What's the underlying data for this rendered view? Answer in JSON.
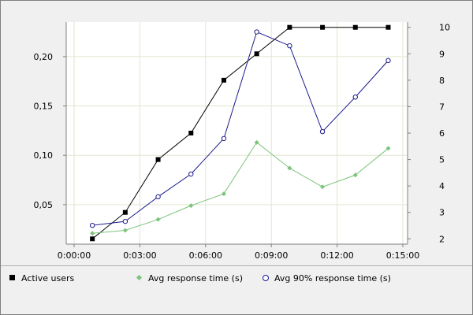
{
  "chart_data": {
    "type": "line",
    "x": [
      "0:00:50",
      "0:02:20",
      "0:03:50",
      "0:05:20",
      "0:06:50",
      "0:08:20",
      "0:09:50",
      "0:11:20",
      "0:12:50",
      "0:14:20"
    ],
    "x_ticks": [
      "0:00:00",
      "0:03:00",
      "0:06:00",
      "0:09:00",
      "0:12:00",
      "0:15:00"
    ],
    "xlim": [
      "0:00:00",
      "0:15:00"
    ],
    "y_left_ticks": [
      "0,05",
      "0,10",
      "0,15",
      "0,20"
    ],
    "ylim_left": [
      0.01,
      0.235
    ],
    "y_right_ticks": [
      "2",
      "3",
      "4",
      "5",
      "6",
      "7",
      "8",
      "9",
      "10"
    ],
    "ylim_right": [
      1.8,
      10.2
    ],
    "grid": true,
    "legend_position": "bottom",
    "series": [
      {
        "name": "Active users",
        "axis": "right",
        "color": "#000000",
        "marker": "square",
        "values": [
          2,
          3,
          5,
          6,
          8,
          9,
          10,
          10,
          10,
          10
        ]
      },
      {
        "name": "Avg response time (s)",
        "axis": "left",
        "color": "#7cc47c",
        "marker": "diamond",
        "values": [
          0.021,
          0.024,
          0.035,
          0.049,
          0.061,
          0.113,
          0.087,
          0.068,
          0.08,
          0.107
        ]
      },
      {
        "name": "Avg 90% response time (s)",
        "axis": "left",
        "color": "#1a1a8c",
        "marker": "circle",
        "values": [
          0.029,
          0.033,
          0.058,
          0.081,
          0.117,
          0.225,
          0.211,
          0.124,
          0.159,
          0.196
        ]
      }
    ]
  }
}
